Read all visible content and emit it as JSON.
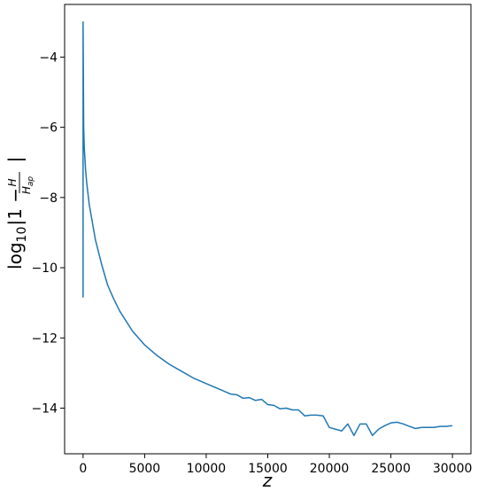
{
  "chart_data": {
    "type": "line",
    "title": "",
    "xlabel": "z",
    "ylabel": {
      "prefix": "log",
      "subscript": "10",
      "abs_open": "|1 −",
      "frac_num": "H",
      "frac_den": "H",
      "frac_den_sub": "ap",
      "abs_close": "|"
    },
    "xlim": [
      -1500,
      31500
    ],
    "ylim": [
      -15.3,
      -2.5
    ],
    "xticks": [
      0,
      5000,
      10000,
      15000,
      20000,
      25000,
      30000
    ],
    "xtick_labels": [
      "0",
      "5000",
      "10000",
      "15000",
      "20000",
      "25000",
      "30000"
    ],
    "yticks": [
      -4,
      -6,
      -8,
      -10,
      -12,
      -14
    ],
    "ytick_labels": [
      "−4",
      "−6",
      "−8",
      "−10",
      "−12",
      "−14"
    ],
    "grid": false,
    "legend": "none",
    "series": [
      {
        "color": "#1f77b4",
        "x": [
          0,
          0,
          50,
          100,
          200,
          300,
          400,
          500,
          700,
          1000,
          1500,
          2000,
          2500,
          3000,
          4000,
          5000,
          6000,
          7000,
          8000,
          9000,
          10000,
          11000,
          12000,
          12500,
          13000,
          13500,
          14000,
          14500,
          15000,
          15500,
          16000,
          16500,
          17000,
          17500,
          18000,
          18500,
          19000,
          19500,
          20000,
          20500,
          21000,
          21500,
          22000,
          22500,
          23000,
          23500,
          24000,
          24500,
          25000,
          25500,
          26000,
          26500,
          27000,
          27500,
          28000,
          28500,
          29000,
          29500,
          30000
        ],
        "y": [
          -10.85,
          -3.0,
          -6.0,
          -6.6,
          -7.2,
          -7.6,
          -7.9,
          -8.2,
          -8.6,
          -9.2,
          -9.9,
          -10.5,
          -10.9,
          -11.25,
          -11.8,
          -12.2,
          -12.5,
          -12.75,
          -12.95,
          -13.15,
          -13.3,
          -13.45,
          -13.6,
          -13.62,
          -13.72,
          -13.7,
          -13.78,
          -13.75,
          -13.9,
          -13.92,
          -14.02,
          -14.0,
          -14.05,
          -14.05,
          -14.22,
          -14.2,
          -14.2,
          -14.22,
          -14.55,
          -14.6,
          -14.65,
          -14.45,
          -14.78,
          -14.45,
          -14.45,
          -14.78,
          -14.6,
          -14.5,
          -14.42,
          -14.4,
          -14.45,
          -14.52,
          -14.58,
          -14.55,
          -14.55,
          -14.55,
          -14.52,
          -14.52,
          -14.5
        ]
      }
    ]
  }
}
